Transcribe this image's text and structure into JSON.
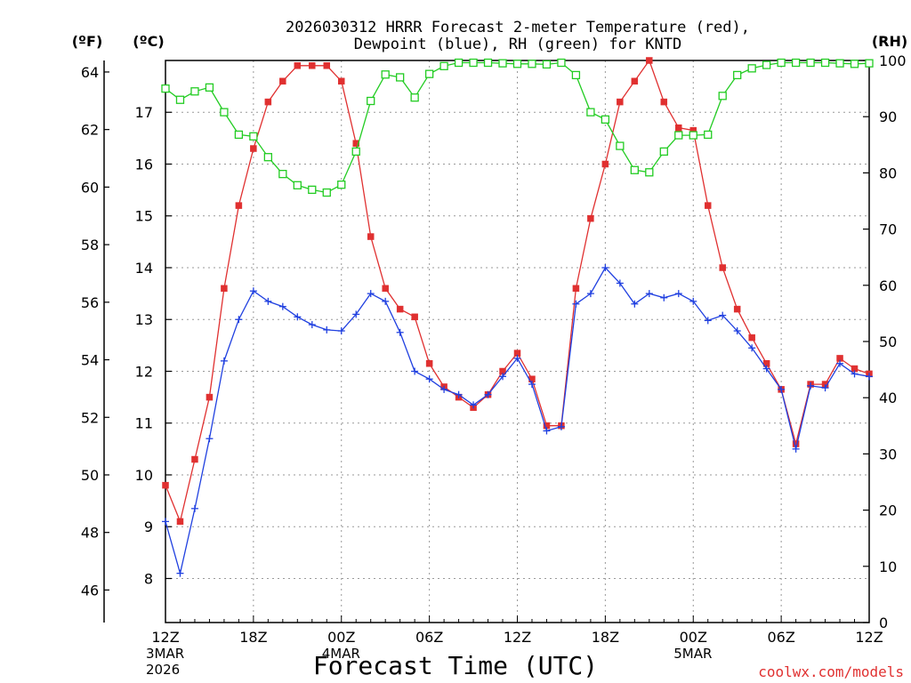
{
  "chart_data": {
    "type": "line",
    "title_line1": "2026030312 HRRR Forecast 2-meter Temperature (red),",
    "title_line2": "Dewpoint (blue), RH (green) for KNTD",
    "axis_unit_left_f": "(ºF)",
    "axis_unit_left_c": "(ºC)",
    "axis_unit_right": "(RH)",
    "xlabel": "Forecast Time (UTC)",
    "watermark": "coolwx.com/models",
    "x_range_hours": [
      0,
      48
    ],
    "c_range": [
      7.15,
      18.0
    ],
    "rh_range": [
      0,
      100
    ],
    "f_ticks": [
      46,
      48,
      50,
      52,
      54,
      56,
      58,
      60,
      62,
      64
    ],
    "f_tick_labels": [
      "46",
      "48",
      "50",
      "52",
      "54",
      "56",
      "58",
      "60",
      "62",
      "64"
    ],
    "c_ticks": [
      8,
      9,
      10,
      11,
      12,
      13,
      14,
      15,
      16,
      17
    ],
    "c_tick_labels": [
      "8",
      "9",
      "10",
      "11",
      "12",
      "13",
      "14",
      "15",
      "16",
      "17"
    ],
    "rh_ticks": [
      0,
      10,
      20,
      30,
      40,
      50,
      60,
      70,
      80,
      90,
      100
    ],
    "rh_tick_labels": [
      "0",
      "10",
      "20",
      "30",
      "40",
      "50",
      "60",
      "70",
      "80",
      "90",
      "100"
    ],
    "x_ticks": [
      {
        "hour": 0,
        "label": "12Z"
      },
      {
        "hour": 6,
        "label": "18Z"
      },
      {
        "hour": 12,
        "label": "00Z"
      },
      {
        "hour": 18,
        "label": "06Z"
      },
      {
        "hour": 24,
        "label": "12Z"
      },
      {
        "hour": 30,
        "label": "18Z"
      },
      {
        "hour": 36,
        "label": "00Z"
      },
      {
        "hour": 42,
        "label": "06Z"
      },
      {
        "hour": 48,
        "label": "12Z"
      }
    ],
    "date_labels": [
      {
        "hour": 0,
        "lines": [
          "3MAR",
          "2026"
        ]
      },
      {
        "hour": 12,
        "lines": [
          "4MAR"
        ]
      },
      {
        "hour": 36,
        "lines": [
          "5MAR"
        ]
      }
    ],
    "series": [
      {
        "name": "Temperature",
        "unit": "C",
        "color": "#e03030",
        "marker": "filled-square",
        "values": [
          9.8,
          9.1,
          10.3,
          11.5,
          13.6,
          15.2,
          16.3,
          17.2,
          17.6,
          17.9,
          17.9,
          17.9,
          17.6,
          16.4,
          14.6,
          13.6,
          13.2,
          13.05,
          12.15,
          11.7,
          11.5,
          11.3,
          11.55,
          12.0,
          12.35,
          11.85,
          10.95,
          10.95,
          13.6,
          14.95,
          16.0,
          17.2,
          17.6,
          18.0,
          17.2,
          16.7,
          16.65,
          15.2,
          14.0,
          13.2,
          12.65,
          12.15,
          11.65,
          10.6,
          11.75,
          11.75,
          12.25,
          12.05,
          11.95
        ]
      },
      {
        "name": "Dewpoint",
        "unit": "C",
        "color": "#2040e0",
        "marker": "plus",
        "values": [
          9.1,
          8.1,
          9.35,
          10.7,
          12.2,
          13.0,
          13.55,
          13.35,
          13.25,
          13.05,
          12.9,
          12.8,
          12.78,
          13.1,
          13.5,
          13.35,
          12.75,
          12.0,
          11.85,
          11.65,
          11.55,
          11.35,
          11.55,
          11.9,
          12.25,
          11.75,
          10.85,
          10.93,
          13.3,
          13.5,
          14.0,
          13.7,
          13.3,
          13.5,
          13.42,
          13.5,
          13.35,
          12.98,
          13.08,
          12.78,
          12.45,
          12.05,
          11.65,
          10.5,
          11.72,
          11.68,
          12.15,
          11.95,
          11.9
        ]
      },
      {
        "name": "RH",
        "unit": "%",
        "color": "#22cc22",
        "marker": "open-square",
        "values": [
          95,
          93,
          94.5,
          95.2,
          90.8,
          86.8,
          86.5,
          82.8,
          79.8,
          77.8,
          77.0,
          76.5,
          77.9,
          83.8,
          92.8,
          97.5,
          97.0,
          93.4,
          97.6,
          99.0,
          99.6,
          99.6,
          99.6,
          99.5,
          99.4,
          99.4,
          99.3,
          99.6,
          97.4,
          90.8,
          89.5,
          84.8,
          80.5,
          80.1,
          83.8,
          86.7,
          86.7,
          86.8,
          93.7,
          97.4,
          98.6,
          99.2,
          99.6,
          99.6,
          99.6,
          99.6,
          99.5,
          99.4,
          99.5
        ]
      }
    ]
  }
}
